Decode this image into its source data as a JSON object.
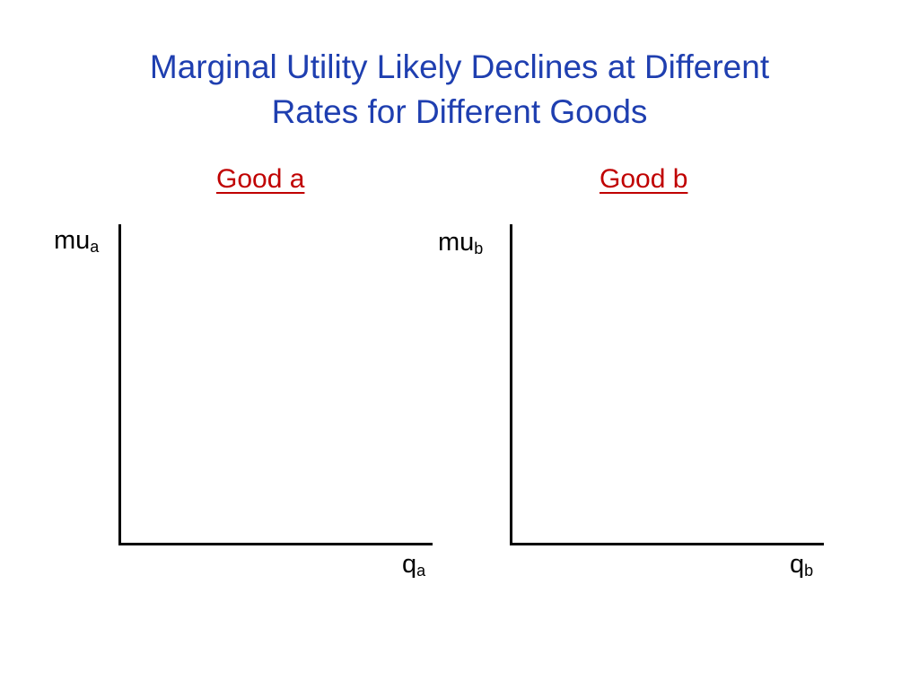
{
  "title": {
    "line1": "Marginal Utility Likely Declines at Different",
    "line2": "Rates for Different Goods"
  },
  "panels": [
    {
      "heading": "Good a",
      "y_axis": {
        "base": "mu",
        "subscript": "a"
      },
      "x_axis": {
        "base": "q",
        "subscript": "a"
      }
    },
    {
      "heading": "Good b",
      "y_axis": {
        "base": "mu",
        "subscript": "b"
      },
      "x_axis": {
        "base": "q",
        "subscript": "b"
      }
    }
  ],
  "colors": {
    "title": "#1f3fb0",
    "panel_heading": "#c00000",
    "axes": "#000000"
  }
}
